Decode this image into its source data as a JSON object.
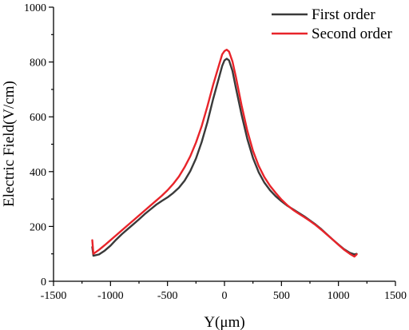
{
  "chart_data": {
    "type": "line",
    "title": "",
    "xlabel": "Y(μm)",
    "ylabel": "Electric Field(V/cm)",
    "xlim": [
      -1500,
      1500
    ],
    "ylim": [
      0,
      1000
    ],
    "xticks": [
      -1500,
      -1000,
      -500,
      0,
      500,
      1000,
      1500
    ],
    "yticks": [
      0,
      200,
      400,
      600,
      800,
      1000
    ],
    "grid": false,
    "legend_position": "top-right",
    "series": [
      {
        "name": "First order",
        "color": "#3a3a3a",
        "points": [
          [
            -1160,
            125
          ],
          [
            -1150,
            93
          ],
          [
            -1100,
            98
          ],
          [
            -1050,
            112
          ],
          [
            -1000,
            130
          ],
          [
            -950,
            152
          ],
          [
            -900,
            172
          ],
          [
            -850,
            190
          ],
          [
            -800,
            208
          ],
          [
            -750,
            226
          ],
          [
            -700,
            245
          ],
          [
            -650,
            262
          ],
          [
            -600,
            279
          ],
          [
            -550,
            293
          ],
          [
            -500,
            306
          ],
          [
            -450,
            322
          ],
          [
            -400,
            341
          ],
          [
            -350,
            367
          ],
          [
            -300,
            402
          ],
          [
            -250,
            448
          ],
          [
            -200,
            508
          ],
          [
            -150,
            580
          ],
          [
            -100,
            664
          ],
          [
            -50,
            740
          ],
          [
            -20,
            786
          ],
          [
            0,
            806
          ],
          [
            20,
            812
          ],
          [
            40,
            806
          ],
          [
            70,
            768
          ],
          [
            100,
            706
          ],
          [
            150,
            608
          ],
          [
            200,
            520
          ],
          [
            250,
            450
          ],
          [
            300,
            398
          ],
          [
            350,
            360
          ],
          [
            400,
            332
          ],
          [
            450,
            310
          ],
          [
            500,
            292
          ],
          [
            550,
            276
          ],
          [
            600,
            263
          ],
          [
            650,
            250
          ],
          [
            700,
            237
          ],
          [
            750,
            222
          ],
          [
            800,
            207
          ],
          [
            850,
            190
          ],
          [
            900,
            171
          ],
          [
            950,
            152
          ],
          [
            1000,
            134
          ],
          [
            1050,
            117
          ],
          [
            1100,
            104
          ],
          [
            1140,
            98
          ],
          [
            1160,
            100
          ]
        ]
      },
      {
        "name": "Second order",
        "color": "#e8242a",
        "points": [
          [
            -1160,
            150
          ],
          [
            -1150,
            100
          ],
          [
            -1100,
            115
          ],
          [
            -1050,
            132
          ],
          [
            -1000,
            150
          ],
          [
            -950,
            168
          ],
          [
            -900,
            186
          ],
          [
            -850,
            204
          ],
          [
            -800,
            222
          ],
          [
            -750,
            240
          ],
          [
            -700,
            258
          ],
          [
            -650,
            276
          ],
          [
            -600,
            294
          ],
          [
            -550,
            312
          ],
          [
            -500,
            332
          ],
          [
            -450,
            355
          ],
          [
            -400,
            382
          ],
          [
            -350,
            416
          ],
          [
            -300,
            456
          ],
          [
            -250,
            506
          ],
          [
            -200,
            566
          ],
          [
            -150,
            638
          ],
          [
            -100,
            716
          ],
          [
            -50,
            786
          ],
          [
            -20,
            828
          ],
          [
            0,
            840
          ],
          [
            20,
            845
          ],
          [
            40,
            838
          ],
          [
            70,
            802
          ],
          [
            100,
            746
          ],
          [
            150,
            642
          ],
          [
            200,
            550
          ],
          [
            250,
            476
          ],
          [
            300,
            421
          ],
          [
            350,
            380
          ],
          [
            400,
            348
          ],
          [
            450,
            322
          ],
          [
            500,
            298
          ],
          [
            550,
            278
          ],
          [
            600,
            261
          ],
          [
            650,
            247
          ],
          [
            700,
            234
          ],
          [
            750,
            220
          ],
          [
            800,
            205
          ],
          [
            850,
            188
          ],
          [
            900,
            170
          ],
          [
            950,
            152
          ],
          [
            1000,
            133
          ],
          [
            1050,
            115
          ],
          [
            1100,
            100
          ],
          [
            1140,
            90
          ],
          [
            1160,
            98
          ]
        ]
      }
    ]
  }
}
